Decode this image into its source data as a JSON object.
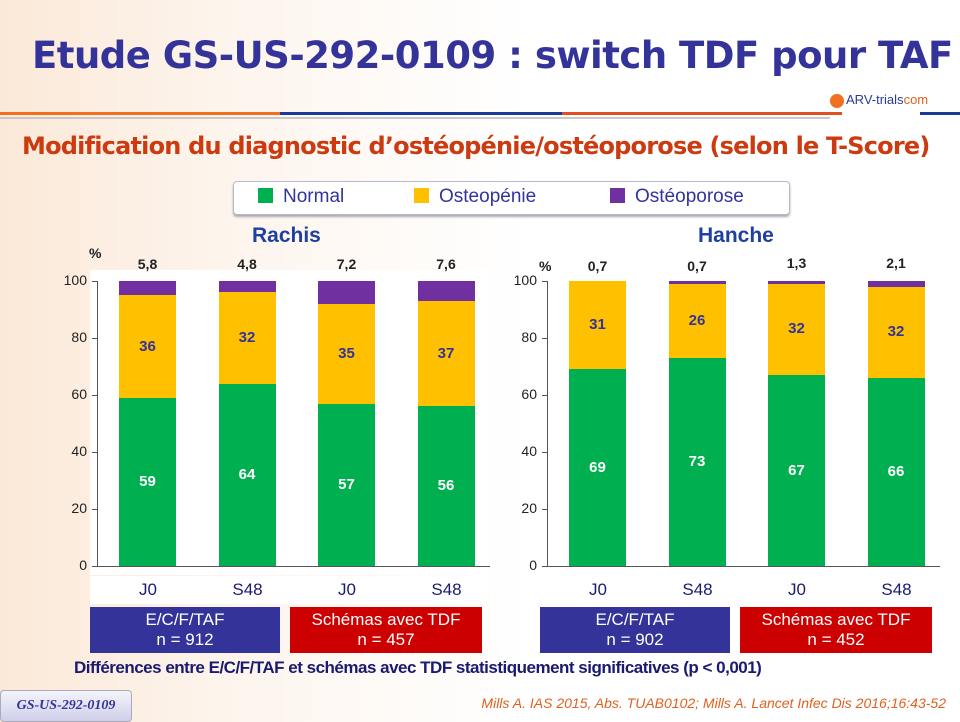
{
  "header": {
    "title": "Etude GS-US-292-0109 : switch TDF pour TAF",
    "subtitle": "Modification du diagnostic d’ostéopénie/ostéoporose (selon le T-Score)",
    "logo": "ARV-trials",
    "logo_suffix": "com"
  },
  "legend": [
    {
      "label": "Normal",
      "color": "#00b050"
    },
    {
      "label": "Osteopénie",
      "color": "#ffc000"
    },
    {
      "label": "Ostéoporose",
      "color": "#7030a0"
    }
  ],
  "chart_data": [
    {
      "type": "bar",
      "stacked": true,
      "title": "Rachis",
      "ylabel": "%",
      "ylim": [
        0,
        100
      ],
      "yticks": [
        "0",
        "20",
        "40",
        "60",
        "80",
        "100"
      ],
      "categories": [
        "J0",
        "S48",
        "J0",
        "S48"
      ],
      "series": [
        {
          "name": "Normal",
          "values": [
            59,
            64,
            57,
            56
          ]
        },
        {
          "name": "Osteopénie",
          "values": [
            36,
            32,
            35,
            37
          ]
        },
        {
          "name": "Ostéoporose",
          "values": [
            5.8,
            4.8,
            7.2,
            7.6
          ],
          "labels": [
            "5,8",
            "4,8",
            "7,2",
            "7,6"
          ]
        }
      ],
      "groups": [
        {
          "name": "E/C/F/TAF",
          "n": "n = 912"
        },
        {
          "name": "Schémas avec TDF",
          "n": "n = 457"
        }
      ]
    },
    {
      "type": "bar",
      "stacked": true,
      "title": "Hanche",
      "ylabel": "%",
      "ylim": [
        0,
        100
      ],
      "yticks": [
        "0",
        "20",
        "40",
        "60",
        "80",
        "100"
      ],
      "categories": [
        "J0",
        "S48",
        "J0",
        "S48"
      ],
      "series": [
        {
          "name": "Normal",
          "values": [
            69,
            73,
            67,
            66
          ]
        },
        {
          "name": "Osteopénie",
          "values": [
            31,
            26,
            32,
            32
          ]
        },
        {
          "name": "Ostéoporose",
          "values": [
            0.7,
            0.7,
            1.3,
            2.1
          ],
          "labels": [
            "0,7",
            "0,7",
            "1,3",
            "2,1"
          ]
        }
      ],
      "groups": [
        {
          "name": "E/C/F/TAF",
          "n": "n = 902"
        },
        {
          "name": "Schémas avec TDF",
          "n": "n = 452"
        }
      ]
    }
  ],
  "footer": {
    "note": "Différences entre E/C/F/TAF et schémas avec TDF statistiquement significatives (p < 0,001)",
    "badge": "GS-US-292-0109",
    "reference": "Mills A. IAS 2015, Abs. TUAB0102; Mills A. Lancet Infec Dis 2016;16:43-52"
  },
  "colors": {
    "group1": "#333399",
    "group2": "#cc0000"
  }
}
